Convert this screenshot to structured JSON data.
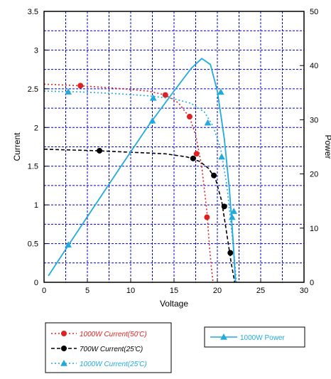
{
  "chart_data": {
    "type": "line",
    "xlabel": "Voltage",
    "ylabel": "Current",
    "y2label": "Power",
    "xlim": [
      0,
      30
    ],
    "ylim": [
      0,
      3.5
    ],
    "y2lim": [
      0,
      50
    ],
    "x_ticks": [
      "0",
      "5",
      "10",
      "15",
      "20",
      "25",
      "30"
    ],
    "y_ticks": [
      "0",
      "0.5",
      "1",
      "1.5",
      "2",
      "2.5",
      "3",
      "3.5"
    ],
    "y2_ticks": [
      "0",
      "10",
      "20",
      "30",
      "40",
      "50"
    ],
    "grid": true,
    "colors": {
      "grid": "#0000cc",
      "red": "#dd2222",
      "black": "#000000",
      "cyan": "#22aadd"
    },
    "series": [
      {
        "name": "1000W Current(50'C)",
        "axis": "left",
        "color": "#dd2222",
        "style": "dotted",
        "marker": "circle",
        "x": [
          0,
          4,
          8,
          12,
          14,
          15.5,
          16.8,
          17.5,
          18.2,
          18.8,
          19.1,
          19.3,
          19.5
        ],
        "y": [
          2.56,
          2.54,
          2.51,
          2.47,
          2.42,
          2.32,
          2.13,
          1.9,
          1.5,
          0.9,
          0.45,
          0.2,
          0.0
        ],
        "markers_x": [
          4.2,
          14,
          16.8,
          17.6,
          18.8
        ],
        "markers_y": [
          2.54,
          2.42,
          2.14,
          1.66,
          0.84
        ]
      },
      {
        "name": "700W Current(25'C)",
        "axis": "left",
        "color": "#000000",
        "style": "dashed",
        "marker": "circle",
        "x": [
          0,
          3,
          6,
          10,
          14,
          16.5,
          18,
          19,
          19.8,
          20.5,
          21.1,
          21.6,
          22
        ],
        "y": [
          1.72,
          1.71,
          1.7,
          1.68,
          1.66,
          1.62,
          1.56,
          1.47,
          1.33,
          1.05,
          0.62,
          0.25,
          0.0
        ],
        "markers_x": [
          6.4,
          17.2,
          19.6,
          20.8,
          21.5
        ],
        "markers_y": [
          1.7,
          1.6,
          1.38,
          0.98,
          0.38
        ]
      },
      {
        "name": "1000W Current(25'C)",
        "axis": "left",
        "color": "#22aadd",
        "style": "dotted",
        "marker": "triangle",
        "x": [
          0,
          4,
          8,
          12,
          15,
          17,
          18.5,
          19.5,
          20.4,
          21.1,
          21.6,
          22,
          22.2
        ],
        "y": [
          2.47,
          2.46,
          2.44,
          2.41,
          2.37,
          2.31,
          2.2,
          2.02,
          1.72,
          1.25,
          0.72,
          0.28,
          0.0
        ],
        "markers_x": [
          2.8,
          12.6,
          18.9,
          20.5,
          21.7
        ],
        "markers_y": [
          2.46,
          2.38,
          2.06,
          1.62,
          0.84
        ]
      },
      {
        "name": "1000W Power",
        "axis": "right",
        "color": "#22aadd",
        "style": "solid",
        "marker": "triangle",
        "x": [
          0.5,
          3,
          6,
          9,
          12,
          15,
          17,
          18.2,
          19.2,
          20,
          20.8,
          21.4,
          21.8,
          22.1
        ],
        "y": [
          1.2,
          7.3,
          14.5,
          21.7,
          28.8,
          35.3,
          39.5,
          41.3,
          40.2,
          35.3,
          26.5,
          17.0,
          8.0,
          0.0
        ],
        "markers_x": [
          2.8,
          12.5,
          20.4,
          21.9
        ],
        "markers_y": [
          6.9,
          29.8,
          35.1,
          13.1
        ]
      }
    ],
    "legend": {
      "placement": "bottom",
      "left_entries": [
        "1000W Current(50'C)",
        "700W   Current(25'C)",
        "1000W Current(25'C)"
      ],
      "right_entries": [
        "1000W Power"
      ]
    }
  }
}
